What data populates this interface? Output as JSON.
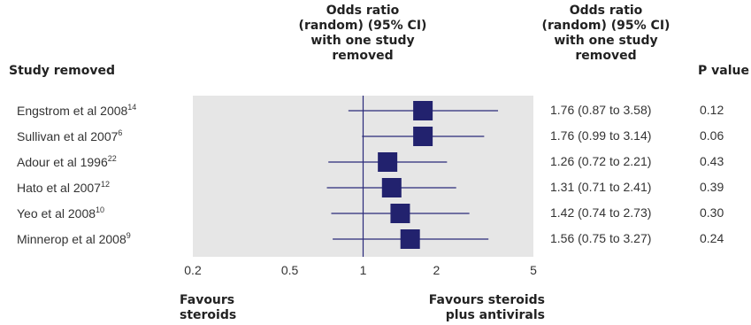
{
  "header": {
    "study_removed": "Study removed",
    "or_plot_lines": [
      "Odds ratio",
      "(random) (95% CI)",
      "with one study",
      "removed"
    ],
    "or_text_lines": [
      "Odds ratio",
      "(random) (95% CI)",
      "with one study",
      "removed"
    ],
    "p_value": "P value"
  },
  "footer": {
    "favours_left": [
      "Favours",
      "steroids"
    ],
    "favours_right": [
      "Favours steroids",
      "plus antivirals"
    ]
  },
  "colors": {
    "panel": "#e6e6e6",
    "marker": "#22226e",
    "line": "#2a2a7a"
  },
  "chart_data": {
    "type": "forest",
    "x_scale": "log",
    "xlim": [
      0.2,
      5
    ],
    "x_ticks": [
      "0.2",
      "0.5",
      "1",
      "2",
      "5"
    ],
    "reference_line": 1,
    "rows": [
      {
        "study": "Engstrom et al 2008",
        "ref": "14",
        "or": 1.76,
        "lo": 0.87,
        "hi": 3.58,
        "ci_text": "1.76 (0.87 to 3.58)",
        "p": "0.12"
      },
      {
        "study": "Sullivan et al 2007",
        "ref": "6",
        "or": 1.76,
        "lo": 0.99,
        "hi": 3.14,
        "ci_text": "1.76 (0.99 to 3.14)",
        "p": "0.06"
      },
      {
        "study": "Adour et al 1996",
        "ref": "22",
        "or": 1.26,
        "lo": 0.72,
        "hi": 2.21,
        "ci_text": "1.26 (0.72 to 2.21)",
        "p": "0.43"
      },
      {
        "study": "Hato et al 2007",
        "ref": "12",
        "or": 1.31,
        "lo": 0.71,
        "hi": 2.41,
        "ci_text": "1.31 (0.71 to 2.41)",
        "p": "0.39"
      },
      {
        "study": "Yeo et al 2008",
        "ref": "10",
        "or": 1.42,
        "lo": 0.74,
        "hi": 2.73,
        "ci_text": "1.42 (0.74 to 2.73)",
        "p": "0.30"
      },
      {
        "study": "Minnerop et al 2008",
        "ref": "9",
        "or": 1.56,
        "lo": 0.75,
        "hi": 3.27,
        "ci_text": "1.56 (0.75 to 3.27)",
        "p": "0.24"
      }
    ]
  }
}
